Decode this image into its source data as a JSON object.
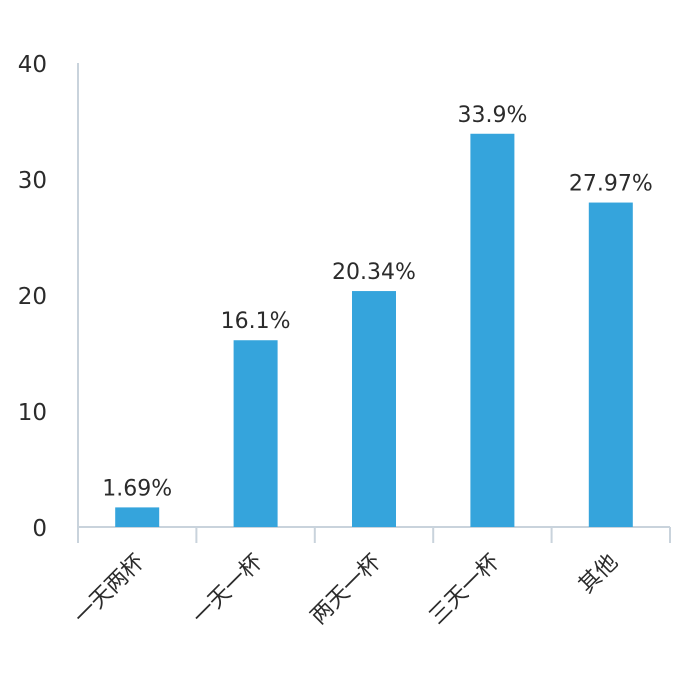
{
  "chart_data": {
    "type": "bar",
    "title": "",
    "xlabel": "",
    "ylabel": "",
    "categories": [
      "一天两杯",
      "一天一杯",
      "两天一杯",
      "三天一杯",
      "其他"
    ],
    "values": [
      1.69,
      16.1,
      20.34,
      33.9,
      27.97
    ],
    "data_labels": [
      "1.69%",
      "16.1%",
      "20.34%",
      "33.9%",
      "27.97%"
    ],
    "ylim": [
      0,
      40
    ],
    "yticks": [
      0,
      10,
      20,
      30,
      40
    ],
    "ytick_labels": [
      "0",
      "10",
      "20",
      "30",
      "40"
    ],
    "grid": false,
    "legend": "none",
    "colors": {
      "bar": "#35a4dc",
      "axis": "#c9d3dc",
      "text": "#2b2b2b"
    }
  }
}
